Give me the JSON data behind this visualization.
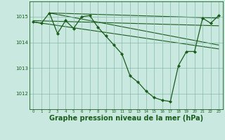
{
  "background_color": "#c8e8e0",
  "plot_bg_color": "#c8e8e0",
  "grid_color": "#88bbaa",
  "line_color": "#1a5c1a",
  "marker_color": "#1a5c1a",
  "xlabel": "Graphe pression niveau de la mer (hPa)",
  "xlabel_fontsize": 7.0,
  "ylabel_ticks": [
    1012,
    1013,
    1014,
    1015
  ],
  "xtick_labels": [
    "0",
    "1",
    "2",
    "3",
    "4",
    "5",
    "6",
    "7",
    "8",
    "9",
    "10",
    "11",
    "12",
    "13",
    "14",
    "15",
    "16",
    "17",
    "18",
    "19",
    "20",
    "21",
    "22",
    "23"
  ],
  "xlim": [
    -0.5,
    23.5
  ],
  "ylim": [
    1011.4,
    1015.6
  ],
  "main_series": {
    "x": [
      0,
      1,
      2,
      3,
      4,
      5,
      6,
      7,
      8,
      9,
      10,
      11,
      12,
      13,
      14,
      15,
      16,
      17,
      18,
      19,
      20,
      21,
      22,
      23
    ],
    "y": [
      1014.8,
      1014.75,
      1015.15,
      1014.35,
      1014.85,
      1014.55,
      1015.0,
      1015.05,
      1014.6,
      1014.25,
      1013.9,
      1013.55,
      1012.7,
      1012.45,
      1012.1,
      1011.85,
      1011.75,
      1011.7,
      1013.1,
      1013.65,
      1013.65,
      1014.95,
      1014.75,
      1015.05
    ],
    "marker": "D",
    "markersize": 2.0,
    "linewidth": 0.9
  },
  "straight_lines": [
    {
      "x": [
        0,
        23
      ],
      "y": [
        1014.85,
        1014.65
      ]
    },
    {
      "x": [
        2,
        23
      ],
      "y": [
        1015.15,
        1014.95
      ]
    },
    {
      "x": [
        0,
        23
      ],
      "y": [
        1014.8,
        1013.75
      ]
    },
    {
      "x": [
        2,
        23
      ],
      "y": [
        1015.15,
        1013.9
      ]
    }
  ]
}
